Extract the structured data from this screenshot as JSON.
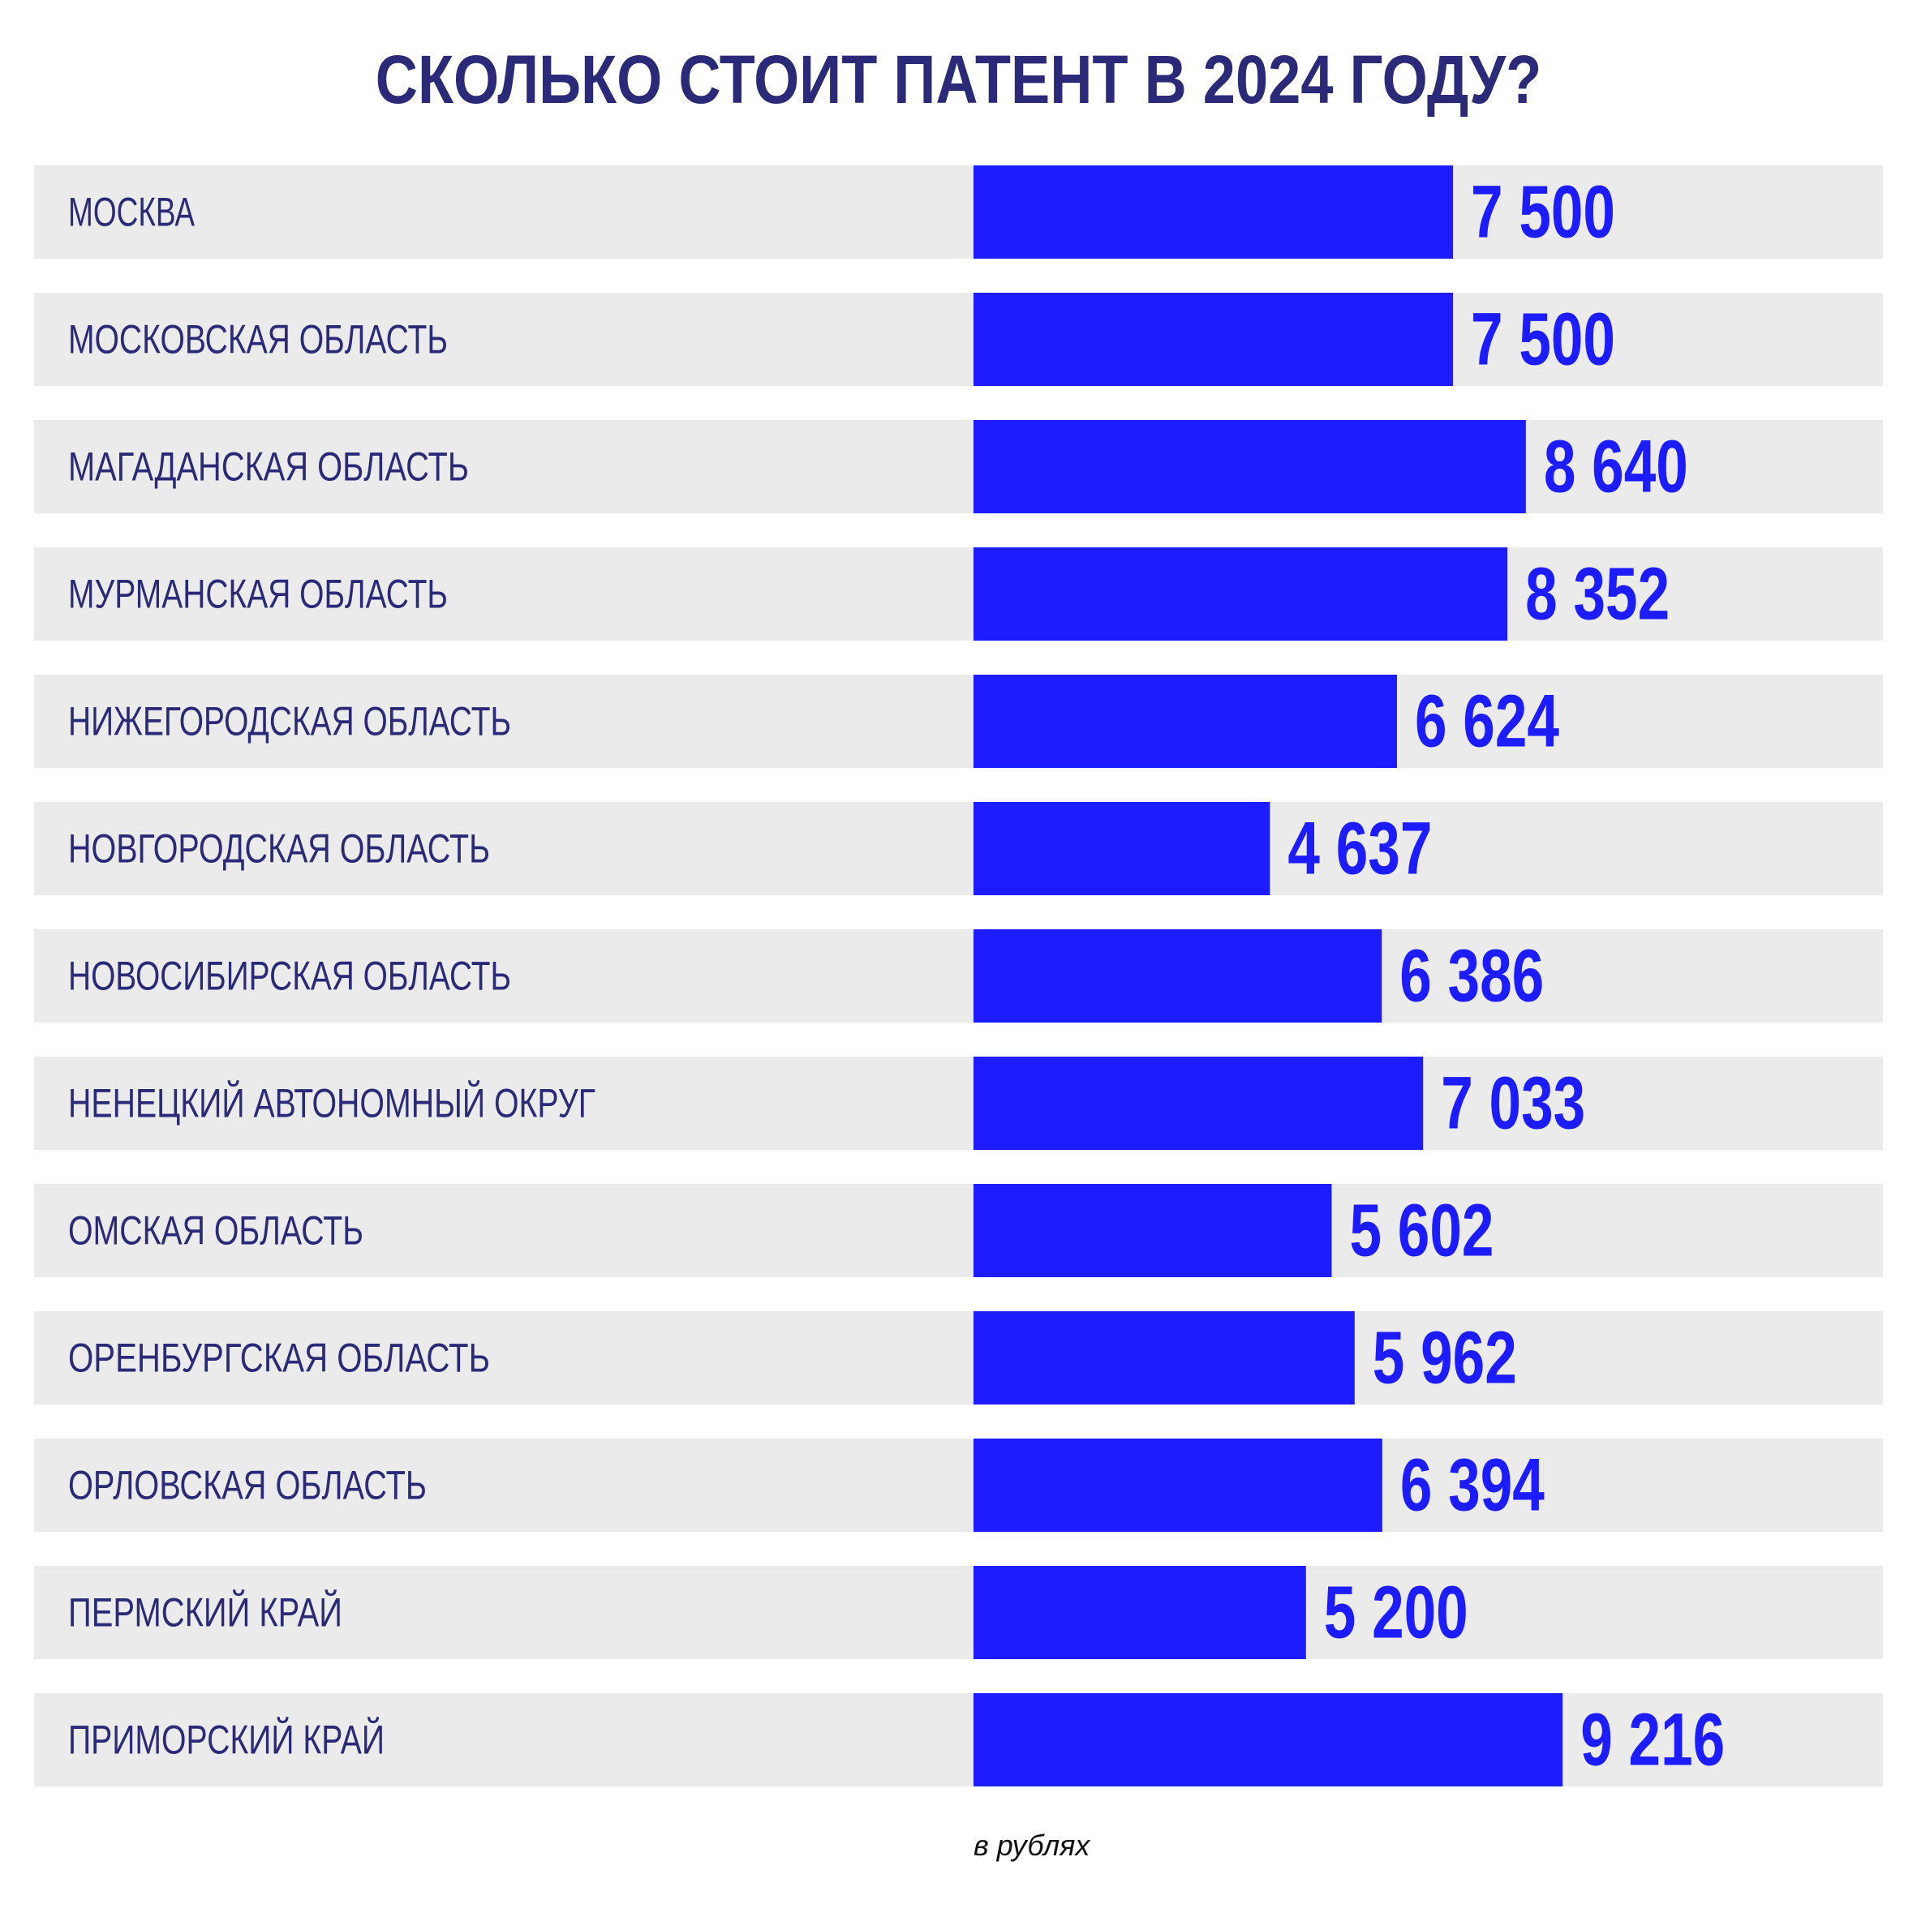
{
  "chart_data": {
    "type": "bar",
    "orientation": "horizontal",
    "title": "СКОЛЬКО СТОИТ ПАТЕНТ В 2024 ГОДУ?",
    "unit_note": "в рублях",
    "categories": [
      "МОСКВА",
      "МОСКОВСКАЯ ОБЛАСТЬ",
      "МАГАДАНСКАЯ ОБЛАСТЬ",
      "МУРМАНСКАЯ ОБЛАСТЬ",
      "НИЖЕГОРОДСКАЯ ОБЛАСТЬ",
      "НОВГОРОДСКАЯ ОБЛАСТЬ",
      "НОВОСИБИРСКАЯ ОБЛАСТЬ",
      "НЕНЕЦКИЙ АВТОНОМНЫЙ ОКРУГ",
      "ОМСКАЯ ОБЛАСТЬ",
      "ОРЕНБУРГСКАЯ ОБЛАСТЬ",
      "ОРЛОВСКАЯ ОБЛАСТЬ",
      "ПЕРМСКИЙ КРАЙ",
      "ПРИМОРСКИЙ КРАЙ"
    ],
    "values": [
      7500,
      7500,
      8640,
      8352,
      6624,
      4637,
      6386,
      7033,
      5602,
      5962,
      6394,
      5200,
      9216
    ],
    "value_labels": [
      "7 500",
      "7 500",
      "8 640",
      "8 352",
      "6 624",
      "4 637",
      "6 386",
      "7 033",
      "5 602",
      "5 962",
      "6 394",
      "5 200",
      "9 216"
    ],
    "xlim": [
      0,
      14250
    ],
    "grid": false,
    "legend": "none",
    "colors": {
      "bar": "#1c1cff",
      "row_background": "#ebebeb",
      "label_text": "#2b2a78",
      "value_text": "#1c1cff",
      "title_text": "#2b2a78"
    }
  }
}
